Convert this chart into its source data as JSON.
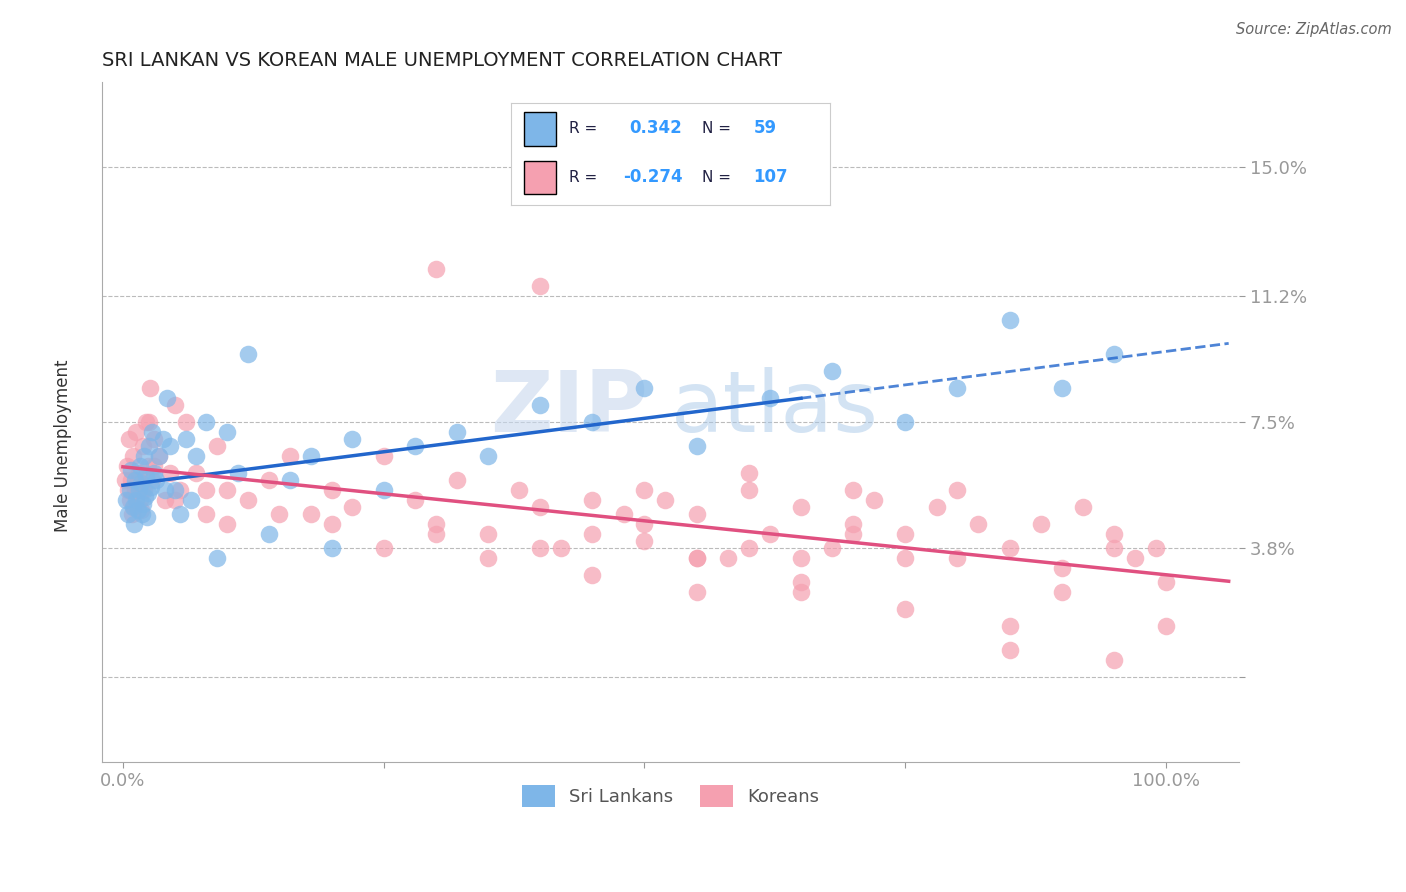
{
  "title": "SRI LANKAN VS KOREAN MALE UNEMPLOYMENT CORRELATION CHART",
  "source_text": "Source: ZipAtlas.com",
  "ylabel": "Male Unemployment",
  "watermark_zip": "ZIP",
  "watermark_atlas": "atlas",
  "x_ticks": [
    0.0,
    25.0,
    50.0,
    75.0,
    100.0
  ],
  "x_tick_labels": [
    "0.0%",
    "",
    "",
    "",
    "100.0%"
  ],
  "y_ticks": [
    0.0,
    3.8,
    7.5,
    11.2,
    15.0
  ],
  "y_tick_labels": [
    "",
    "3.8%",
    "7.5%",
    "11.2%",
    "15.0%"
  ],
  "xlim": [
    -2,
    107
  ],
  "ylim": [
    -2.5,
    17.5
  ],
  "sri_lankan_color": "#7eb6e8",
  "korean_color": "#f5a0b0",
  "sri_lankan_R": 0.342,
  "sri_lankan_N": 59,
  "korean_R": -0.274,
  "korean_N": 107,
  "sri_lankan_label": "Sri Lankans",
  "korean_label": "Koreans",
  "legend_value_color": "#3399ff",
  "legend_label_color": "#222244",
  "background_color": "#ffffff",
  "grid_color": "#bbbbbb",
  "tick_color": "#5599cc",
  "title_color": "#222222",
  "sl_trend_color": "#2266cc",
  "kr_trend_color": "#e05080",
  "sl_x": [
    0.3,
    0.5,
    0.7,
    0.8,
    1.0,
    1.1,
    1.2,
    1.3,
    1.4,
    1.5,
    1.6,
    1.7,
    1.8,
    1.9,
    2.0,
    2.1,
    2.2,
    2.3,
    2.4,
    2.5,
    2.7,
    2.8,
    3.0,
    3.2,
    3.5,
    3.8,
    4.0,
    4.2,
    4.5,
    5.0,
    5.5,
    6.0,
    6.5,
    7.0,
    8.0,
    9.0,
    10.0,
    11.0,
    12.0,
    14.0,
    16.0,
    18.0,
    20.0,
    22.0,
    25.0,
    28.0,
    32.0,
    35.0,
    40.0,
    45.0,
    50.0,
    55.0,
    62.0,
    68.0,
    75.0,
    80.0,
    85.0,
    90.0,
    95.0
  ],
  "sl_y": [
    5.2,
    4.8,
    5.5,
    6.1,
    5.0,
    4.5,
    5.8,
    5.2,
    4.9,
    5.5,
    6.2,
    5.7,
    4.8,
    5.1,
    6.5,
    5.3,
    5.9,
    4.7,
    5.4,
    6.8,
    5.6,
    7.2,
    6.0,
    5.8,
    6.5,
    7.0,
    5.5,
    8.2,
    6.8,
    5.5,
    4.8,
    7.0,
    5.2,
    6.5,
    7.5,
    3.5,
    7.2,
    6.0,
    9.5,
    4.2,
    5.8,
    6.5,
    3.8,
    7.0,
    5.5,
    6.8,
    7.2,
    6.5,
    8.0,
    7.5,
    8.5,
    6.8,
    8.2,
    9.0,
    7.5,
    8.5,
    10.5,
    8.5,
    9.5
  ],
  "kr_x": [
    0.2,
    0.4,
    0.5,
    0.6,
    0.7,
    0.8,
    0.9,
    1.0,
    1.1,
    1.2,
    1.3,
    1.4,
    1.5,
    1.6,
    1.7,
    1.8,
    1.9,
    2.0,
    2.2,
    2.4,
    2.6,
    2.8,
    3.0,
    3.5,
    4.0,
    4.5,
    5.0,
    5.5,
    6.0,
    7.0,
    8.0,
    9.0,
    10.0,
    12.0,
    14.0,
    16.0,
    18.0,
    20.0,
    22.0,
    25.0,
    28.0,
    30.0,
    32.0,
    35.0,
    38.0,
    40.0,
    42.0,
    45.0,
    48.0,
    50.0,
    52.0,
    55.0,
    58.0,
    60.0,
    62.0,
    65.0,
    68.0,
    70.0,
    72.0,
    75.0,
    78.0,
    80.0,
    82.0,
    85.0,
    88.0,
    90.0,
    92.0,
    95.0,
    97.0,
    99.0,
    20.0,
    25.0,
    30.0,
    35.0,
    40.0,
    10.0,
    15.0,
    50.0,
    55.0,
    60.0,
    65.0,
    70.0,
    5.0,
    8.0,
    3.0,
    2.5,
    45.0,
    55.0,
    65.0,
    75.0,
    85.0,
    95.0,
    30.0,
    40.0,
    50.0,
    60.0,
    70.0,
    80.0,
    90.0,
    100.0,
    45.0,
    55.0,
    65.0,
    75.0,
    85.0,
    95.0,
    100.0
  ],
  "kr_y": [
    5.8,
    6.2,
    5.5,
    7.0,
    5.2,
    5.8,
    4.8,
    6.5,
    5.0,
    5.5,
    7.2,
    5.8,
    6.0,
    5.2,
    4.9,
    5.5,
    6.8,
    5.5,
    7.5,
    6.2,
    8.5,
    5.8,
    7.0,
    6.5,
    5.2,
    6.0,
    8.0,
    5.5,
    7.5,
    6.0,
    5.5,
    6.8,
    4.5,
    5.2,
    5.8,
    6.5,
    4.8,
    5.5,
    5.0,
    6.5,
    5.2,
    4.5,
    5.8,
    4.2,
    5.5,
    5.0,
    3.8,
    5.2,
    4.8,
    4.5,
    5.2,
    4.8,
    3.5,
    5.5,
    4.2,
    5.0,
    3.8,
    4.5,
    5.2,
    4.2,
    5.0,
    3.5,
    4.5,
    3.8,
    4.5,
    3.2,
    5.0,
    4.2,
    3.5,
    3.8,
    4.5,
    3.8,
    4.2,
    3.5,
    3.8,
    5.5,
    4.8,
    4.0,
    3.5,
    3.8,
    2.5,
    4.2,
    5.2,
    4.8,
    6.2,
    7.5,
    3.0,
    2.5,
    3.5,
    2.0,
    1.5,
    3.8,
    12.0,
    11.5,
    5.5,
    6.0,
    5.5,
    5.5,
    2.5,
    2.8,
    4.2,
    3.5,
    2.8,
    3.5,
    0.8,
    0.5,
    1.5
  ]
}
